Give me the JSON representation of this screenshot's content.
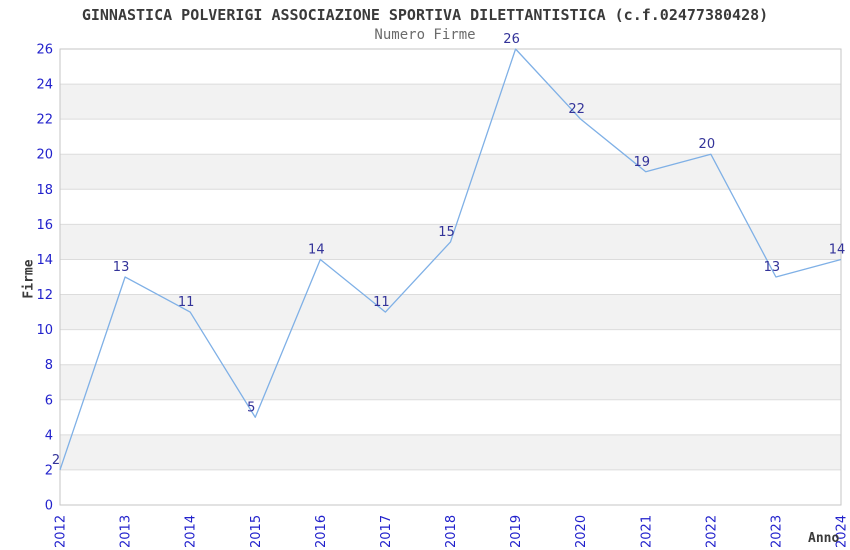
{
  "title": "GINNASTICA POLVERIGI ASSOCIAZIONE SPORTIVA DILETTANTISTICA (c.f.02477380428)",
  "subtitle": "Numero Firme",
  "chart_data": {
    "type": "line",
    "x": [
      "2012",
      "2013",
      "2014",
      "2015",
      "2016",
      "2017",
      "2018",
      "2019",
      "2020",
      "2021",
      "2022",
      "2023",
      "2024"
    ],
    "values": [
      2,
      13,
      11,
      5,
      14,
      11,
      15,
      26,
      22,
      19,
      20,
      13,
      14
    ],
    "title": "GINNASTICA POLVERIGI ASSOCIAZIONE SPORTIVA DILETTANTISTICA (c.f.02477380428)",
    "subtitle": "Numero Firme",
    "xlabel": "Anno",
    "ylabel": "Firme",
    "ylim": [
      0,
      26
    ],
    "ytick_step": 2,
    "grid": true,
    "legend": "none",
    "point_labels": true,
    "colors": {
      "line": "#7fb0e6",
      "axis_tick_label": "#2222cc",
      "point_label": "#333399",
      "band": "#f2f2f2",
      "grid_line": "#dcdcdc",
      "plot_border": "#c6c6c6",
      "title_text": "#3a3a3a",
      "subtitle_text": "#6b6b6b",
      "background": "#ffffff"
    }
  }
}
